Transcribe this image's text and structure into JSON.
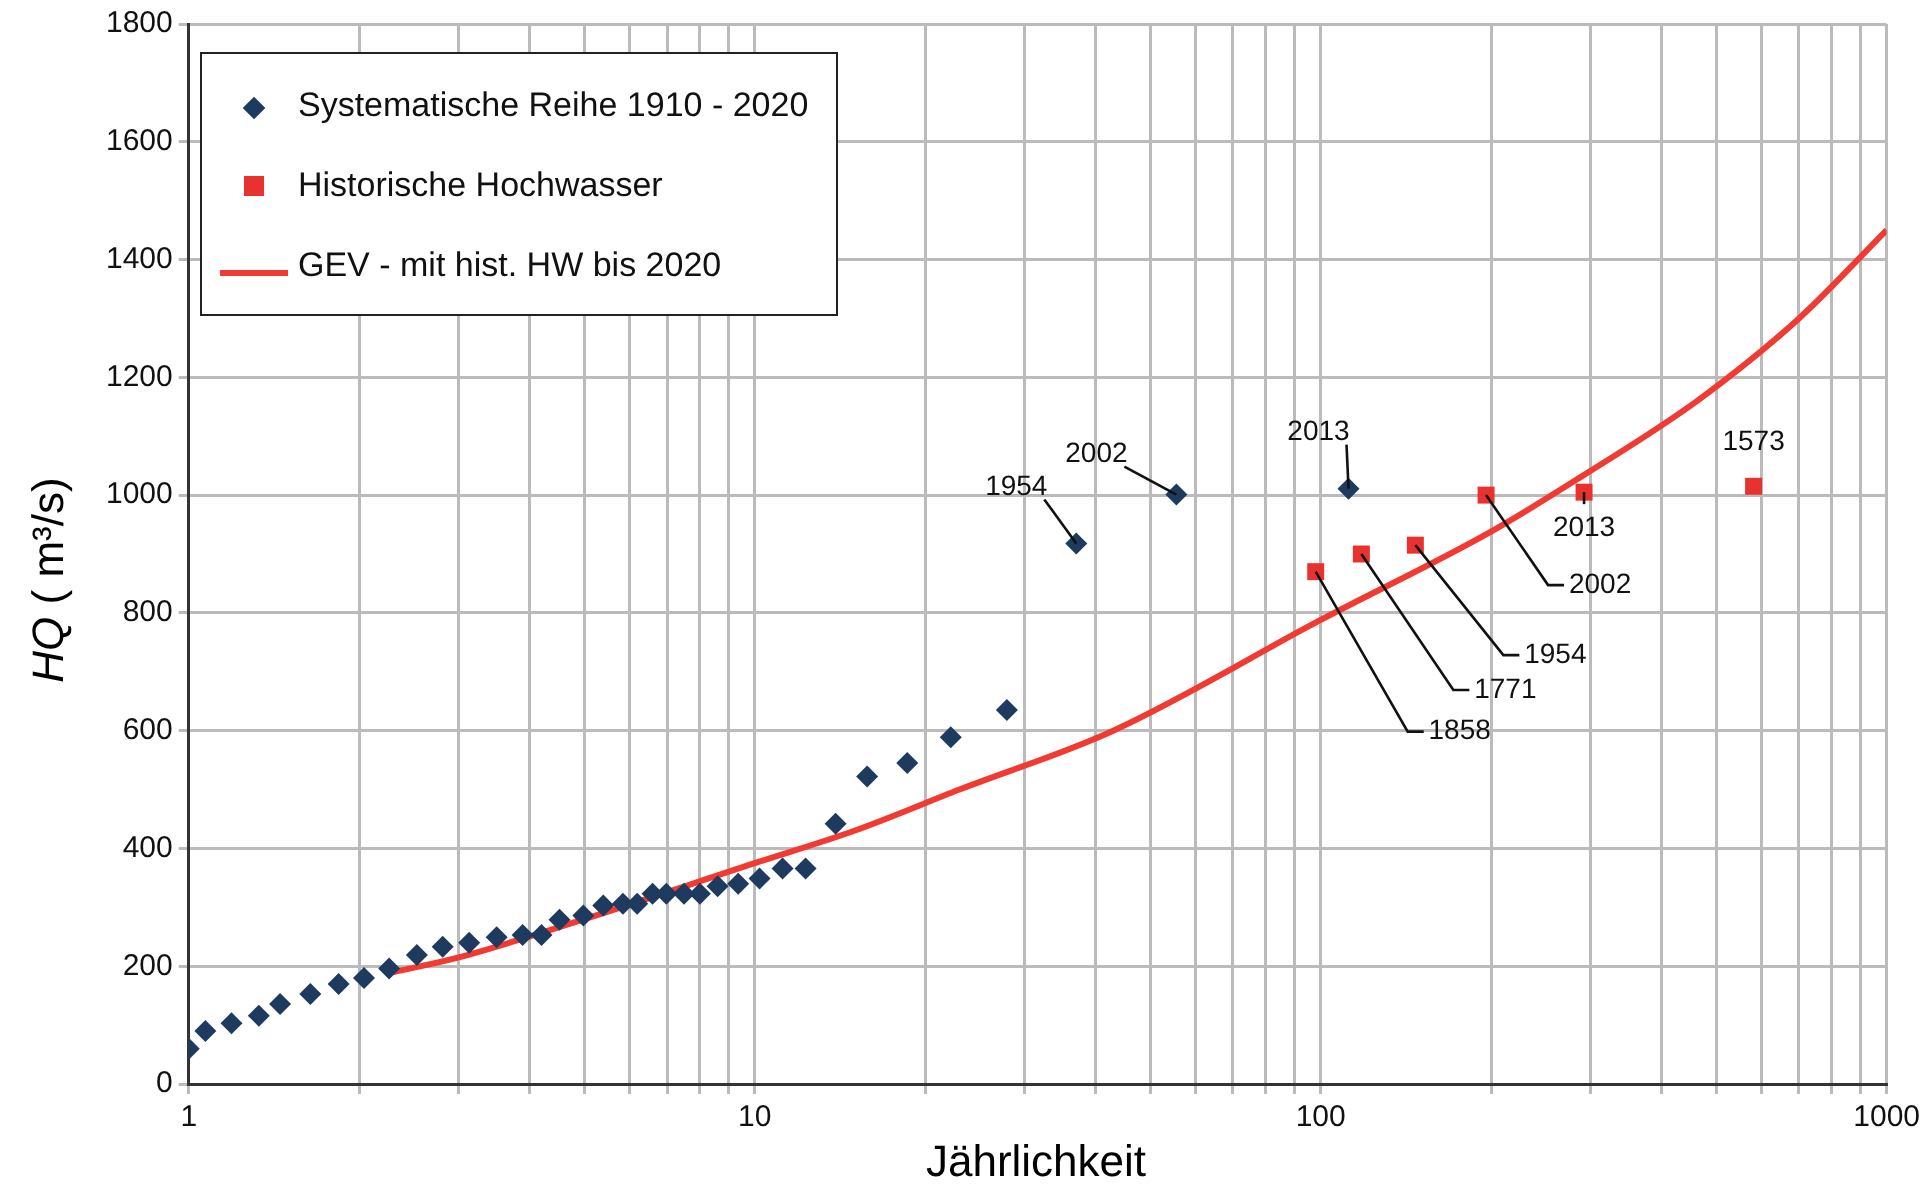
{
  "chart_data": {
    "type": "scatter",
    "xlabel": "Jährlichkeit",
    "ylabel": "HQ ( m³/s)",
    "log": "x",
    "grid": true,
    "legend": "top left",
    "xlim": [
      1,
      1000
    ],
    "xticks": [
      1,
      {
        "value": 2,
        "label": null
      },
      {
        "value": 3,
        "label": null
      },
      {
        "value": 4,
        "label": null
      },
      {
        "value": 5,
        "label": null
      },
      {
        "value": 6,
        "label": null
      },
      {
        "value": 7,
        "label": null
      },
      {
        "value": 8,
        "label": null
      },
      {
        "value": 9,
        "label": null
      },
      10,
      {
        "value": 20,
        "label": null
      },
      {
        "value": 30,
        "label": null
      },
      {
        "value": 40,
        "label": null
      },
      {
        "value": 50,
        "label": null
      },
      {
        "value": 60,
        "label": null
      },
      {
        "value": 70,
        "label": null
      },
      {
        "value": 80,
        "label": null
      },
      {
        "value": 90,
        "label": null
      },
      100,
      {
        "value": 200,
        "label": null
      },
      {
        "value": 300,
        "label": null
      },
      {
        "value": 400,
        "label": null
      },
      {
        "value": 500,
        "label": null
      },
      {
        "value": 600,
        "label": null
      },
      {
        "value": 700,
        "label": null
      },
      {
        "value": 800,
        "label": null
      },
      {
        "value": 900,
        "label": null
      },
      1000
    ],
    "ylim": [
      0,
      1800
    ],
    "yticks": [
      0,
      200,
      400,
      600,
      800,
      1000,
      1200,
      1400,
      1600,
      1800
    ],
    "series": [
      {
        "name": "Systematische Reihe 1910 - 2020",
        "marker": "diamond",
        "color": "#1f3a5f",
        "x": [
          1.0,
          1.07,
          1.19,
          1.33,
          1.45,
          1.64,
          1.84,
          2.04,
          2.26,
          2.53,
          2.81,
          3.13,
          3.5,
          3.89,
          4.2,
          4.52,
          4.98,
          5.4,
          5.85,
          6.2,
          6.6,
          6.98,
          7.5,
          8.0,
          8.6,
          9.35,
          10.2,
          11.2,
          12.3,
          13.9,
          15.8,
          18.6,
          22.2,
          27.9,
          37,
          55.6,
          112
        ],
        "values": [
          60,
          90,
          103,
          116,
          136,
          153,
          170,
          180,
          196,
          219,
          233,
          240,
          249,
          253,
          253,
          279,
          286,
          303,
          306,
          306,
          323,
          323,
          323,
          323,
          336,
          340,
          349,
          366,
          366,
          442,
          522,
          545,
          589,
          635,
          918,
          1001,
          1011
        ]
      },
      {
        "name": "Historische Hochwasser",
        "marker": "square",
        "color": "#e8322f",
        "x": [
          98,
          118,
          147,
          196,
          292,
          582
        ],
        "values": [
          870,
          900,
          915,
          1000,
          1005,
          1015
        ]
      },
      {
        "name": "GEV - mit hist. HW bis 2020",
        "type": "line",
        "marker": "none",
        "color": "#f03a32",
        "x": [
          2.3,
          3,
          5,
          10,
          15,
          23,
          43,
          100,
          200,
          285,
          464,
          700,
          1000
        ],
        "values": [
          190,
          215,
          280,
          375,
          430,
          500,
          600,
          788,
          938,
          1028,
          1161,
          1300,
          1450
        ]
      }
    ],
    "annotations": [
      {
        "text": "1954",
        "x": 37,
        "y": 918
      },
      {
        "text": "2002",
        "x": 55.6,
        "y": 1001
      },
      {
        "text": "2013",
        "x": 112,
        "y": 1011
      },
      {
        "text": "1858",
        "x": 98,
        "y": 870
      },
      {
        "text": "1771",
        "x": 118,
        "y": 900
      },
      {
        "text": "1954",
        "x": 147,
        "y": 915
      },
      {
        "text": "2002",
        "x": 196,
        "y": 1000
      },
      {
        "text": "2013",
        "x": 292,
        "y": 1005
      },
      {
        "text": "1573",
        "x": 582,
        "y": 1015
      }
    ]
  }
}
